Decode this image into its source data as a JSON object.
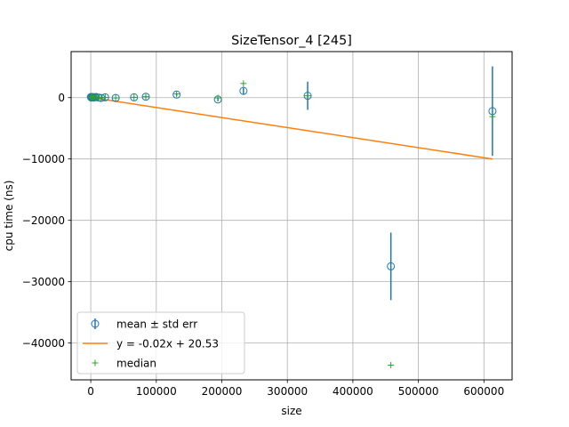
{
  "chart_data": {
    "type": "scatter",
    "title": "SizeTensor_4 [245]",
    "xlabel": "size",
    "ylabel": "cpu time (ns)",
    "xlim": [
      -30000,
      643000
    ],
    "ylim": [
      -46000,
      7500
    ],
    "xticks": [
      0,
      100000,
      200000,
      300000,
      400000,
      500000,
      600000
    ],
    "xtick_labels": [
      "0",
      "100000",
      "200000",
      "300000",
      "400000",
      "500000",
      "600000"
    ],
    "yticks": [
      0,
      -10000,
      -20000,
      -30000,
      -40000
    ],
    "ytick_labels": [
      "0",
      "−10000",
      "−20000",
      "−30000",
      "−40000"
    ],
    "grid": true,
    "legend_position": "lower-left",
    "colors": {
      "mean": "#1f77b4",
      "fit": "#ff7f0e",
      "median": "#2ca02c"
    },
    "legend": [
      {
        "key": "mean",
        "label": "mean ± std err"
      },
      {
        "key": "fit",
        "label": "y = -0.02x + 20.53"
      },
      {
        "key": "median",
        "label": "median"
      }
    ],
    "series": [
      {
        "name": "mean ± std err",
        "x": [
          200,
          1000,
          2000,
          3000,
          4000,
          6000,
          8000,
          12000,
          16000,
          22000,
          38000,
          66000,
          84000,
          131000,
          194000,
          233000,
          331000,
          458000,
          613000
        ],
        "y": [
          100,
          0,
          50,
          100,
          0,
          50,
          100,
          0,
          -50,
          50,
          -50,
          50,
          150,
          500,
          -300,
          1100,
          300,
          -27500,
          -2200
        ],
        "err": [
          80,
          60,
          60,
          80,
          60,
          60,
          80,
          60,
          60,
          80,
          80,
          80,
          120,
          200,
          300,
          500,
          2300,
          5500,
          7300
        ]
      },
      {
        "name": "median",
        "x": [
          200,
          1000,
          2000,
          3000,
          4000,
          6000,
          8000,
          12000,
          16000,
          22000,
          38000,
          66000,
          84000,
          131000,
          194000,
          233000,
          331000,
          458000,
          613000
        ],
        "y": [
          100,
          0,
          50,
          100,
          0,
          50,
          100,
          0,
          -50,
          50,
          -50,
          50,
          150,
          600,
          -50,
          2300,
          300,
          -43600,
          -3100
        ]
      },
      {
        "name": "y = -0.02x + 20.53",
        "x": [
          200,
          613000
        ],
        "y": [
          17,
          -10000
        ]
      }
    ]
  }
}
